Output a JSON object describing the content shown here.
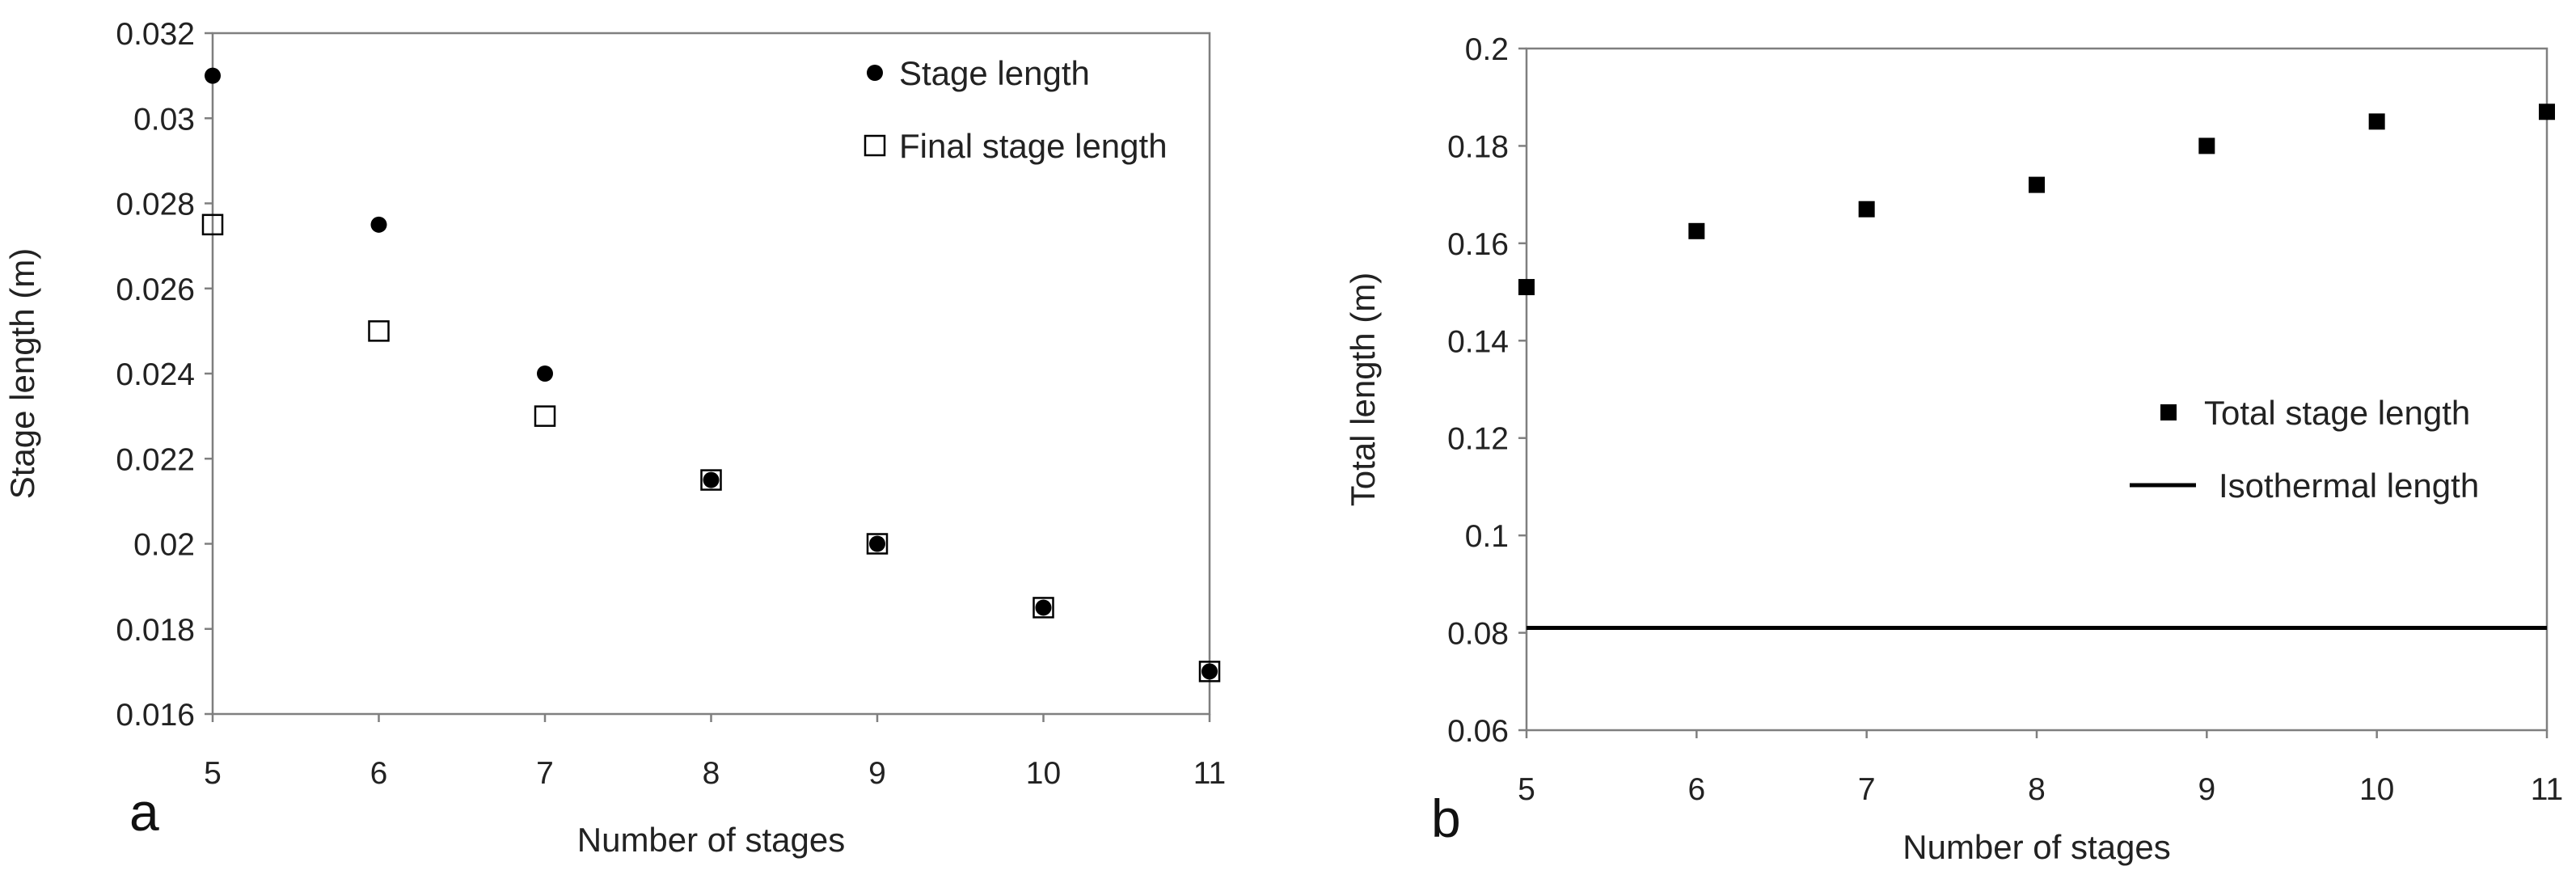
{
  "chart_data": [
    {
      "type": "scatter",
      "panel_label": "a",
      "xlabel": "Number of stages",
      "ylabel": "Stage length (m)",
      "xlim": [
        5,
        11
      ],
      "ylim": [
        0.016,
        0.032
      ],
      "x_ticks": [
        "5",
        "6",
        "7",
        "8",
        "9",
        "10",
        "11"
      ],
      "y_ticks": [
        "0.016",
        "0.018",
        "0.02",
        "0.022",
        "0.024",
        "0.026",
        "0.028",
        "0.03",
        "0.032"
      ],
      "grid": false,
      "legend_position": "top-right",
      "series": [
        {
          "name": "Stage length",
          "marker": "filled-circle",
          "color": "#000000",
          "x": [
            5,
            6,
            7,
            8,
            9,
            10,
            11
          ],
          "y": [
            0.031,
            0.0275,
            0.024,
            0.0215,
            0.02,
            0.0185,
            0.017
          ]
        },
        {
          "name": "Final stage length",
          "marker": "open-square",
          "color": "#000000",
          "x": [
            5,
            6,
            7,
            8,
            9,
            10,
            11
          ],
          "y": [
            0.0275,
            0.025,
            0.023,
            0.0215,
            0.02,
            0.0185,
            0.017
          ]
        }
      ]
    },
    {
      "type": "scatter",
      "panel_label": "b",
      "xlabel": "Number of stages",
      "ylabel": "Total length (m)",
      "xlim": [
        5,
        11
      ],
      "ylim": [
        0.06,
        0.2
      ],
      "x_ticks": [
        "5",
        "6",
        "7",
        "8",
        "9",
        "10",
        "11"
      ],
      "y_ticks": [
        "0.06",
        "0.08",
        "0.1",
        "0.12",
        "0.14",
        "0.16",
        "0.18",
        "0.2"
      ],
      "grid": false,
      "legend_position": "right",
      "series": [
        {
          "name": "Total stage length",
          "marker": "filled-square",
          "color": "#000000",
          "x": [
            5,
            6,
            7,
            8,
            9,
            10,
            11
          ],
          "y": [
            0.151,
            0.1625,
            0.167,
            0.172,
            0.18,
            0.185,
            0.187
          ]
        },
        {
          "name": "Isothermal length",
          "marker": "line",
          "color": "#000000",
          "x": [
            5,
            11
          ],
          "y": [
            0.081,
            0.081
          ]
        }
      ]
    }
  ]
}
